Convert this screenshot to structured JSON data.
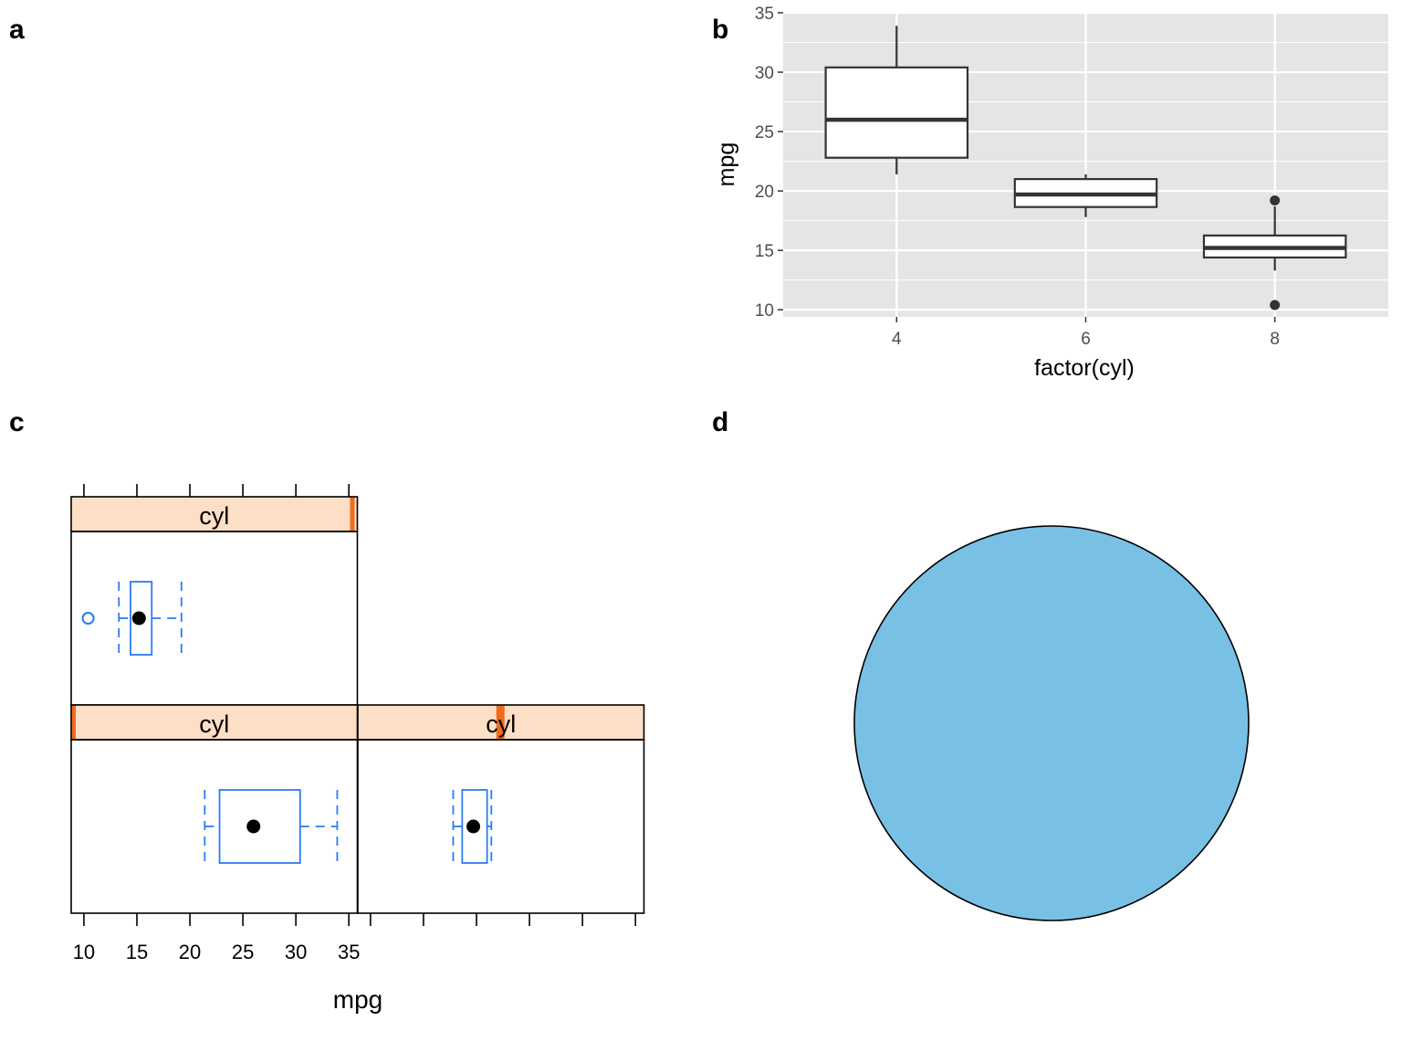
{
  "panels": {
    "a": {
      "tag": "a"
    },
    "b": {
      "tag": "b"
    },
    "c": {
      "tag": "c"
    },
    "d": {
      "tag": "d"
    }
  },
  "chart_data": [
    {
      "panel": "b",
      "type": "box",
      "xlabel": "factor(cyl)",
      "ylabel": "mpg",
      "categories": [
        "4",
        "6",
        "8"
      ],
      "ylim": [
        9.4,
        35.0
      ],
      "yticks": [
        10,
        15,
        20,
        25,
        30,
        35
      ],
      "grid": true,
      "background": "#e5e5e5",
      "boxes": [
        {
          "category": "4",
          "min": 21.4,
          "q1": 22.8,
          "median": 26.0,
          "q3": 30.4,
          "max": 33.9,
          "outliers": []
        },
        {
          "category": "6",
          "min": 17.8,
          "q1": 18.65,
          "median": 19.7,
          "q3": 21.0,
          "max": 21.4,
          "outliers": []
        },
        {
          "category": "8",
          "min": 13.3,
          "q1": 14.4,
          "median": 15.2,
          "q3": 16.25,
          "max": 18.7,
          "outliers": [
            10.4,
            19.2
          ]
        }
      ]
    },
    {
      "panel": "c",
      "type": "box",
      "layout": "lattice bwplot, horizontal",
      "xlabel": "mpg",
      "xlim": [
        8.8,
        35.8
      ],
      "xticks": [
        10,
        15,
        20,
        25,
        30,
        35
      ],
      "strip_fill": "#fddfc5",
      "strip_marker_color": "#f26b1d",
      "box_color": "#2b7bf0",
      "strips": [
        {
          "label": "cyl",
          "level_fraction": 1.0
        },
        {
          "label": "cyl",
          "level_fraction": 0.0
        },
        {
          "label": "cyl",
          "level_fraction": 0.5
        }
      ],
      "boxes": [
        {
          "strip": 0,
          "min": 13.3,
          "q1": 14.4,
          "median": 15.2,
          "q3": 16.4,
          "max": 19.2,
          "outliers": [
            10.4
          ]
        },
        {
          "strip": 1,
          "min": 21.4,
          "q1": 22.8,
          "median": 26.0,
          "q3": 30.4,
          "max": 33.9,
          "outliers": []
        },
        {
          "strip": 2,
          "min": 17.8,
          "q1": 18.65,
          "median": 19.7,
          "q3": 21.0,
          "max": 21.4,
          "outliers": []
        }
      ]
    },
    {
      "panel": "d",
      "type": "shape",
      "shape": "circle",
      "fill": "#79c1e4",
      "stroke": "#000000"
    }
  ]
}
